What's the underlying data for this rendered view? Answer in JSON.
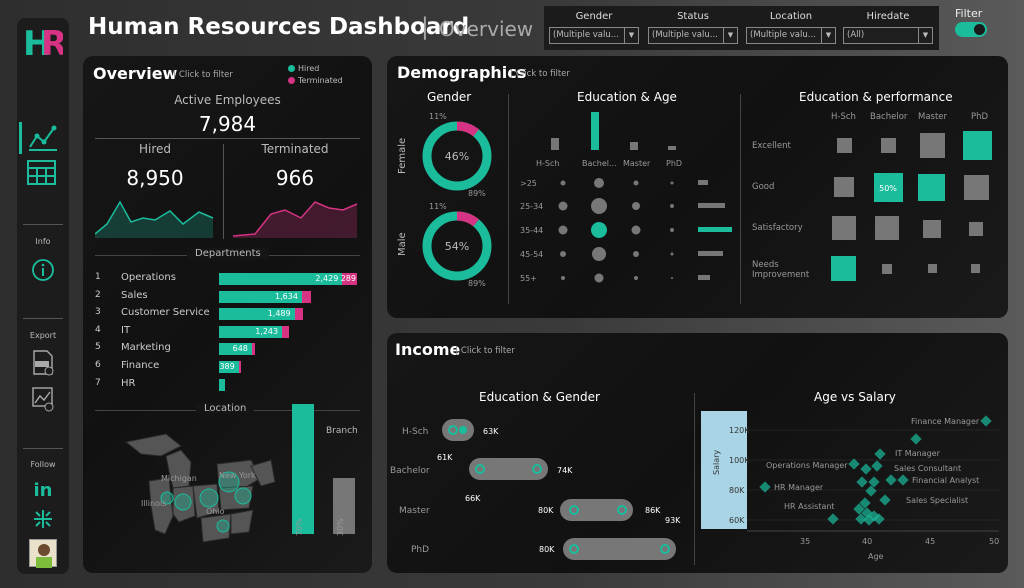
{
  "header": {
    "logo": "HR",
    "title": "Human Resources Dashboard",
    "separator": "|",
    "subtitle": "Overview",
    "filter_label": "Filter"
  },
  "filters": [
    {
      "label": "Gender",
      "value": "(Multiple valu..."
    },
    {
      "label": "Status",
      "value": "(Multiple valu..."
    },
    {
      "label": "Location",
      "value": "(Multiple valu..."
    },
    {
      "label": "Hiredate",
      "value": "(All)"
    }
  ],
  "sidebar": {
    "info_label": "Info",
    "export_label": "Export",
    "follow_label": "Follow"
  },
  "overview": {
    "title": "Overview",
    "click_hint": "Click to filter",
    "legend_hired": "Hired",
    "legend_terminated": "Terminated",
    "active_label": "Active Employees",
    "active_value": "7,984",
    "hired_label": "Hired",
    "hired_value": "8,950",
    "terminated_label": "Terminated",
    "terminated_value": "966",
    "departments_label": "Departments",
    "departments": [
      {
        "rank": "1",
        "name": "Operations",
        "hired": "2,429",
        "terminated": "289",
        "hired_n": 2429,
        "term_n": 289
      },
      {
        "rank": "2",
        "name": "Sales",
        "hired": "1,634",
        "terminated": "",
        "hired_n": 1634,
        "term_n": 170
      },
      {
        "rank": "3",
        "name": "Customer Service",
        "hired": "1,489",
        "terminated": "",
        "hired_n": 1489,
        "term_n": 160
      },
      {
        "rank": "4",
        "name": "IT",
        "hired": "1,243",
        "terminated": "",
        "hired_n": 1243,
        "term_n": 130
      },
      {
        "rank": "5",
        "name": "Marketing",
        "hired": "648",
        "terminated": "",
        "hired_n": 648,
        "term_n": 70
      },
      {
        "rank": "6",
        "name": "Finance",
        "hired": "389",
        "terminated": "",
        "hired_n": 389,
        "term_n": 40
      },
      {
        "rank": "7",
        "name": "HR",
        "hired": "",
        "terminated": "",
        "hired_n": 120,
        "term_n": 0
      }
    ],
    "location_label": "Location",
    "map_labels": [
      "Michigan",
      "New York",
      "Illinois",
      "Ohio"
    ],
    "hq_label": "HQ",
    "branch_label": "Branch",
    "hq_pct": "70%",
    "branch_pct": "30%",
    "hq_value": 0.7,
    "branch_value": 0.3
  },
  "demographics": {
    "title": "Demographics",
    "click_hint": "Click to filter",
    "gender_title": "Gender",
    "female_label": "Female",
    "male_label": "Male",
    "female_center": "46%",
    "female_top": "11%",
    "female_bottom": "89%",
    "male_center": "54%",
    "male_top": "11%",
    "male_bottom": "89%",
    "edu_age_title": "Education & Age",
    "edu_levels": [
      "H-Sch",
      "Bachel...",
      "Master",
      "PhD"
    ],
    "age_groups": [
      ">25",
      "25-34",
      "35-44",
      "45-54",
      "55+"
    ],
    "edu_perf_title": "Education & performance",
    "perf_cols": [
      "H-Sch",
      "Bachelor",
      "Master",
      "PhD"
    ],
    "perf_rows": [
      "Excellent",
      "Good",
      "Satisfactory",
      "Needs\nImprovement"
    ],
    "highlight_value": "50%"
  },
  "income": {
    "title": "Income",
    "click_hint": "Click to filter",
    "edu_gender_title": "Education & Gender",
    "rows": [
      {
        "label": "H-Sch",
        "left": "",
        "right": "63K"
      },
      {
        "label": "Bachelor",
        "left": "61K",
        "right": "74K"
      },
      {
        "label": "Master",
        "left": "66K",
        "right": "80K",
        "right2": "86K",
        "far": "93K"
      },
      {
        "label": "PhD",
        "left": "80K",
        "right": ""
      }
    ],
    "age_salary_title": "Age vs Salary",
    "y_ticks": [
      "120K",
      "100K",
      "80K",
      "60K"
    ],
    "x_ticks": [
      "35",
      "40",
      "45",
      "50"
    ],
    "x_label": "Age",
    "y_label": "Salary",
    "point_labels": [
      "Finance Manager",
      "IT Manager",
      "Operations Manager",
      "Sales Consultant",
      "Financial Analyst",
      "HR Manager",
      "Sales Specialist",
      "HR Assistant"
    ]
  },
  "colors": {
    "teal": "#1abc9c",
    "magenta": "#d63384",
    "grey": "#777777"
  }
}
